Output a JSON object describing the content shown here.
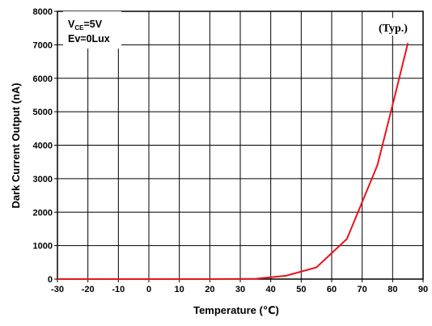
{
  "chart_data": {
    "type": "line",
    "title": "",
    "xlabel": "Temperature (℃)",
    "ylabel": "Dark Current Output (nA)",
    "xlim": [
      -30,
      90
    ],
    "ylim": [
      0,
      8000
    ],
    "x_ticks": [
      -30,
      -20,
      -10,
      0,
      10,
      20,
      30,
      40,
      50,
      60,
      70,
      80,
      90
    ],
    "y_ticks": [
      0,
      1000,
      2000,
      3000,
      4000,
      5000,
      6000,
      7000,
      8000
    ],
    "grid": true,
    "series": [
      {
        "color": "#e8141c",
        "x": [
          -30,
          0,
          20,
          35,
          45,
          55,
          65,
          70,
          75,
          80,
          85
        ],
        "y": [
          0,
          0,
          0,
          10,
          100,
          350,
          1200,
          2300,
          3400,
          5200,
          7050
        ]
      }
    ],
    "annotations": {
      "condition_vce_main": "V",
      "condition_vce_sub": "CE",
      "condition_vce_value": "=5V",
      "condition_ev": "Ev=0Lux",
      "typical": "(Typ.)"
    }
  }
}
